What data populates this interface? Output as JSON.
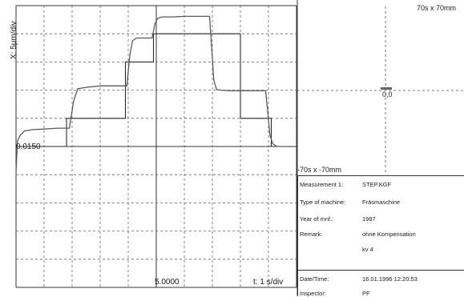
{
  "scope": {
    "y_axis_label": "X: 5µm/div",
    "x_axis_label": "t: 1 s/div",
    "level_readout": "0.0150",
    "time_readout": "5.0000"
  },
  "polar": {
    "range_top": "70s x 70mm",
    "range_bottom": "-70s x -70mm",
    "center_value": "0,0"
  },
  "info": {
    "rows": [
      {
        "key": "Measurement 1:",
        "value": "STEP.KGF"
      },
      {
        "key": "Type of machine:",
        "value": "Fräsmaschine"
      },
      {
        "key": "Year of mnf.:",
        "value": "1987"
      },
      {
        "key": "Remark:",
        "value": "ohne Kompensation"
      },
      {
        "key": "",
        "value": "kv 4"
      },
      {
        "key": "Date/Time:",
        "value": "16.01.1996    12:20:53"
      },
      {
        "key": "Inspector:",
        "value": "PF"
      }
    ]
  },
  "chart_data": {
    "type": "line",
    "title": "",
    "xlabel": "t: 1 s/div",
    "ylabel": "X: 5µm/div",
    "xlim": [
      0,
      10
    ],
    "ylim": [
      -1,
      9
    ],
    "grid": true,
    "series": [
      {
        "values_style": "step-command",
        "x": [
          0,
          1.8,
          1.8,
          3.9,
          3.9,
          4.9,
          4.9,
          8.0,
          8.0,
          9.1,
          9.1,
          10.0
        ],
        "y": [
          4.0,
          4.0,
          5.0,
          5.0,
          7.0,
          7.0,
          8.0,
          8.0,
          5.0,
          5.0,
          4.0,
          4.0
        ]
      },
      {
        "values_style": "measured-response",
        "x": [
          0.0,
          0.05,
          0.15,
          0.3,
          0.6,
          1.0,
          1.5,
          1.9,
          2.05,
          2.2,
          2.5,
          3.0,
          3.5,
          3.95,
          4.05,
          4.15,
          4.3,
          4.6,
          4.85,
          4.95,
          5.05,
          5.2,
          5.6,
          6.0,
          6.5,
          6.9,
          7.05,
          7.15,
          7.3,
          7.6,
          8.0,
          8.3,
          8.9,
          9.05,
          9.15,
          9.3,
          10.0
        ],
        "y": [
          3.1,
          4.2,
          4.4,
          4.55,
          4.6,
          4.62,
          4.65,
          4.65,
          5.6,
          6.05,
          6.1,
          6.15,
          6.15,
          6.15,
          7.2,
          7.75,
          7.85,
          7.85,
          7.85,
          8.35,
          8.55,
          8.6,
          8.6,
          8.62,
          8.62,
          8.62,
          6.35,
          6.02,
          6.0,
          5.98,
          5.98,
          5.98,
          5.98,
          4.4,
          4.1,
          4.0,
          4.0
        ]
      }
    ]
  }
}
